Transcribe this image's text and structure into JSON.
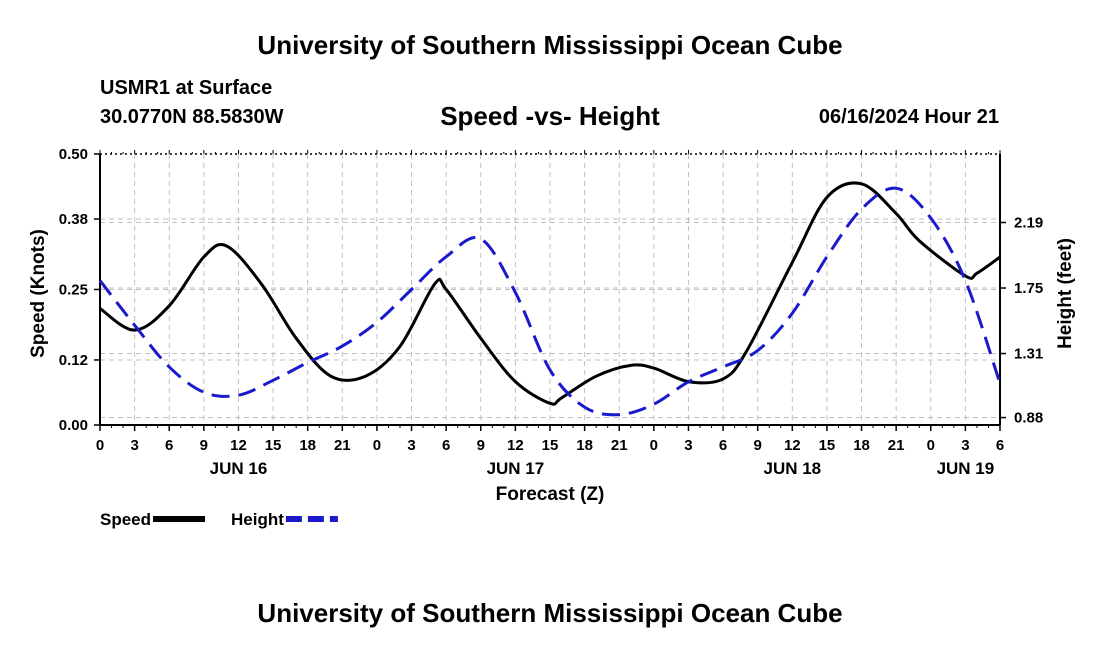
{
  "header": {
    "title": "University of Southern Mississippi Ocean Cube",
    "station": "USMR1 at Surface",
    "coords": "30.0770N  88.5830W",
    "subtitle": "Speed -vs- Height",
    "datetime": "06/16/2024 Hour 21",
    "footer_title": "University of Southern Mississippi Ocean Cube"
  },
  "legend": [
    {
      "label": "Speed",
      "color": "#000000",
      "dashed": false
    },
    {
      "label": "Height",
      "color": "#1a1acc",
      "dashed": true
    }
  ],
  "chart_data": {
    "type": "line",
    "title": "Speed -vs- Height",
    "xlabel": "Forecast (Z)",
    "ylabel": "Speed (Knots)",
    "y2label": "Height (feet)",
    "xlim": [
      0,
      78
    ],
    "ylim": [
      0,
      0.5
    ],
    "y2lim": [
      0.83,
      2.65
    ],
    "x_tick_step": 3,
    "x_tick_labels": [
      "0",
      "3",
      "6",
      "9",
      "12",
      "15",
      "18",
      "21",
      "0",
      "3",
      "6",
      "9",
      "12",
      "15",
      "18",
      "21",
      "0",
      "3",
      "6",
      "9",
      "12",
      "15",
      "18",
      "21",
      "0",
      "3",
      "6"
    ],
    "day_labels": [
      {
        "label": "JUN 16",
        "x": 12
      },
      {
        "label": "JUN 17",
        "x": 36
      },
      {
        "label": "JUN 18",
        "x": 60
      },
      {
        "label": "JUN 19",
        "x": 75
      }
    ],
    "y_ticks": [
      0.0,
      0.12,
      0.25,
      0.38,
      0.5
    ],
    "y_tick_labels": [
      "0.00",
      "0.12",
      "0.25",
      "0.38",
      "0.50"
    ],
    "y2_ticks": [
      0.88,
      1.31,
      1.75,
      2.19
    ],
    "y2_tick_labels": [
      "0.88",
      "1.31",
      "1.75",
      "2.19"
    ],
    "series": [
      {
        "name": "Speed",
        "axis": "left",
        "color": "#000000",
        "dashed": false,
        "x": [
          0,
          3,
          6,
          9,
          11,
          14,
          17,
          20,
          23,
          26,
          29,
          30,
          33,
          36,
          39,
          40,
          43,
          46,
          48,
          51,
          54,
          56,
          60,
          63,
          66,
          69,
          71,
          75,
          76,
          78
        ],
        "y": [
          0.215,
          0.175,
          0.22,
          0.31,
          0.33,
          0.26,
          0.16,
          0.09,
          0.09,
          0.145,
          0.26,
          0.25,
          0.16,
          0.08,
          0.04,
          0.05,
          0.09,
          0.11,
          0.105,
          0.08,
          0.085,
          0.135,
          0.3,
          0.42,
          0.445,
          0.39,
          0.34,
          0.275,
          0.28,
          0.31
        ]
      },
      {
        "name": "Height",
        "axis": "right",
        "color": "#1a1acc",
        "dashed": true,
        "x": [
          0,
          3,
          6,
          9,
          12,
          15,
          18,
          21,
          24,
          27,
          30,
          33,
          36,
          39,
          42,
          45,
          48,
          51,
          54,
          57,
          60,
          63,
          66,
          69,
          72,
          75,
          78
        ],
        "y": [
          1.8,
          1.5,
          1.22,
          1.05,
          1.03,
          1.13,
          1.25,
          1.36,
          1.52,
          1.74,
          1.96,
          2.08,
          1.72,
          1.2,
          0.95,
          0.9,
          0.97,
          1.12,
          1.22,
          1.33,
          1.58,
          1.96,
          2.28,
          2.42,
          2.22,
          1.8,
          1.11
        ]
      }
    ]
  }
}
